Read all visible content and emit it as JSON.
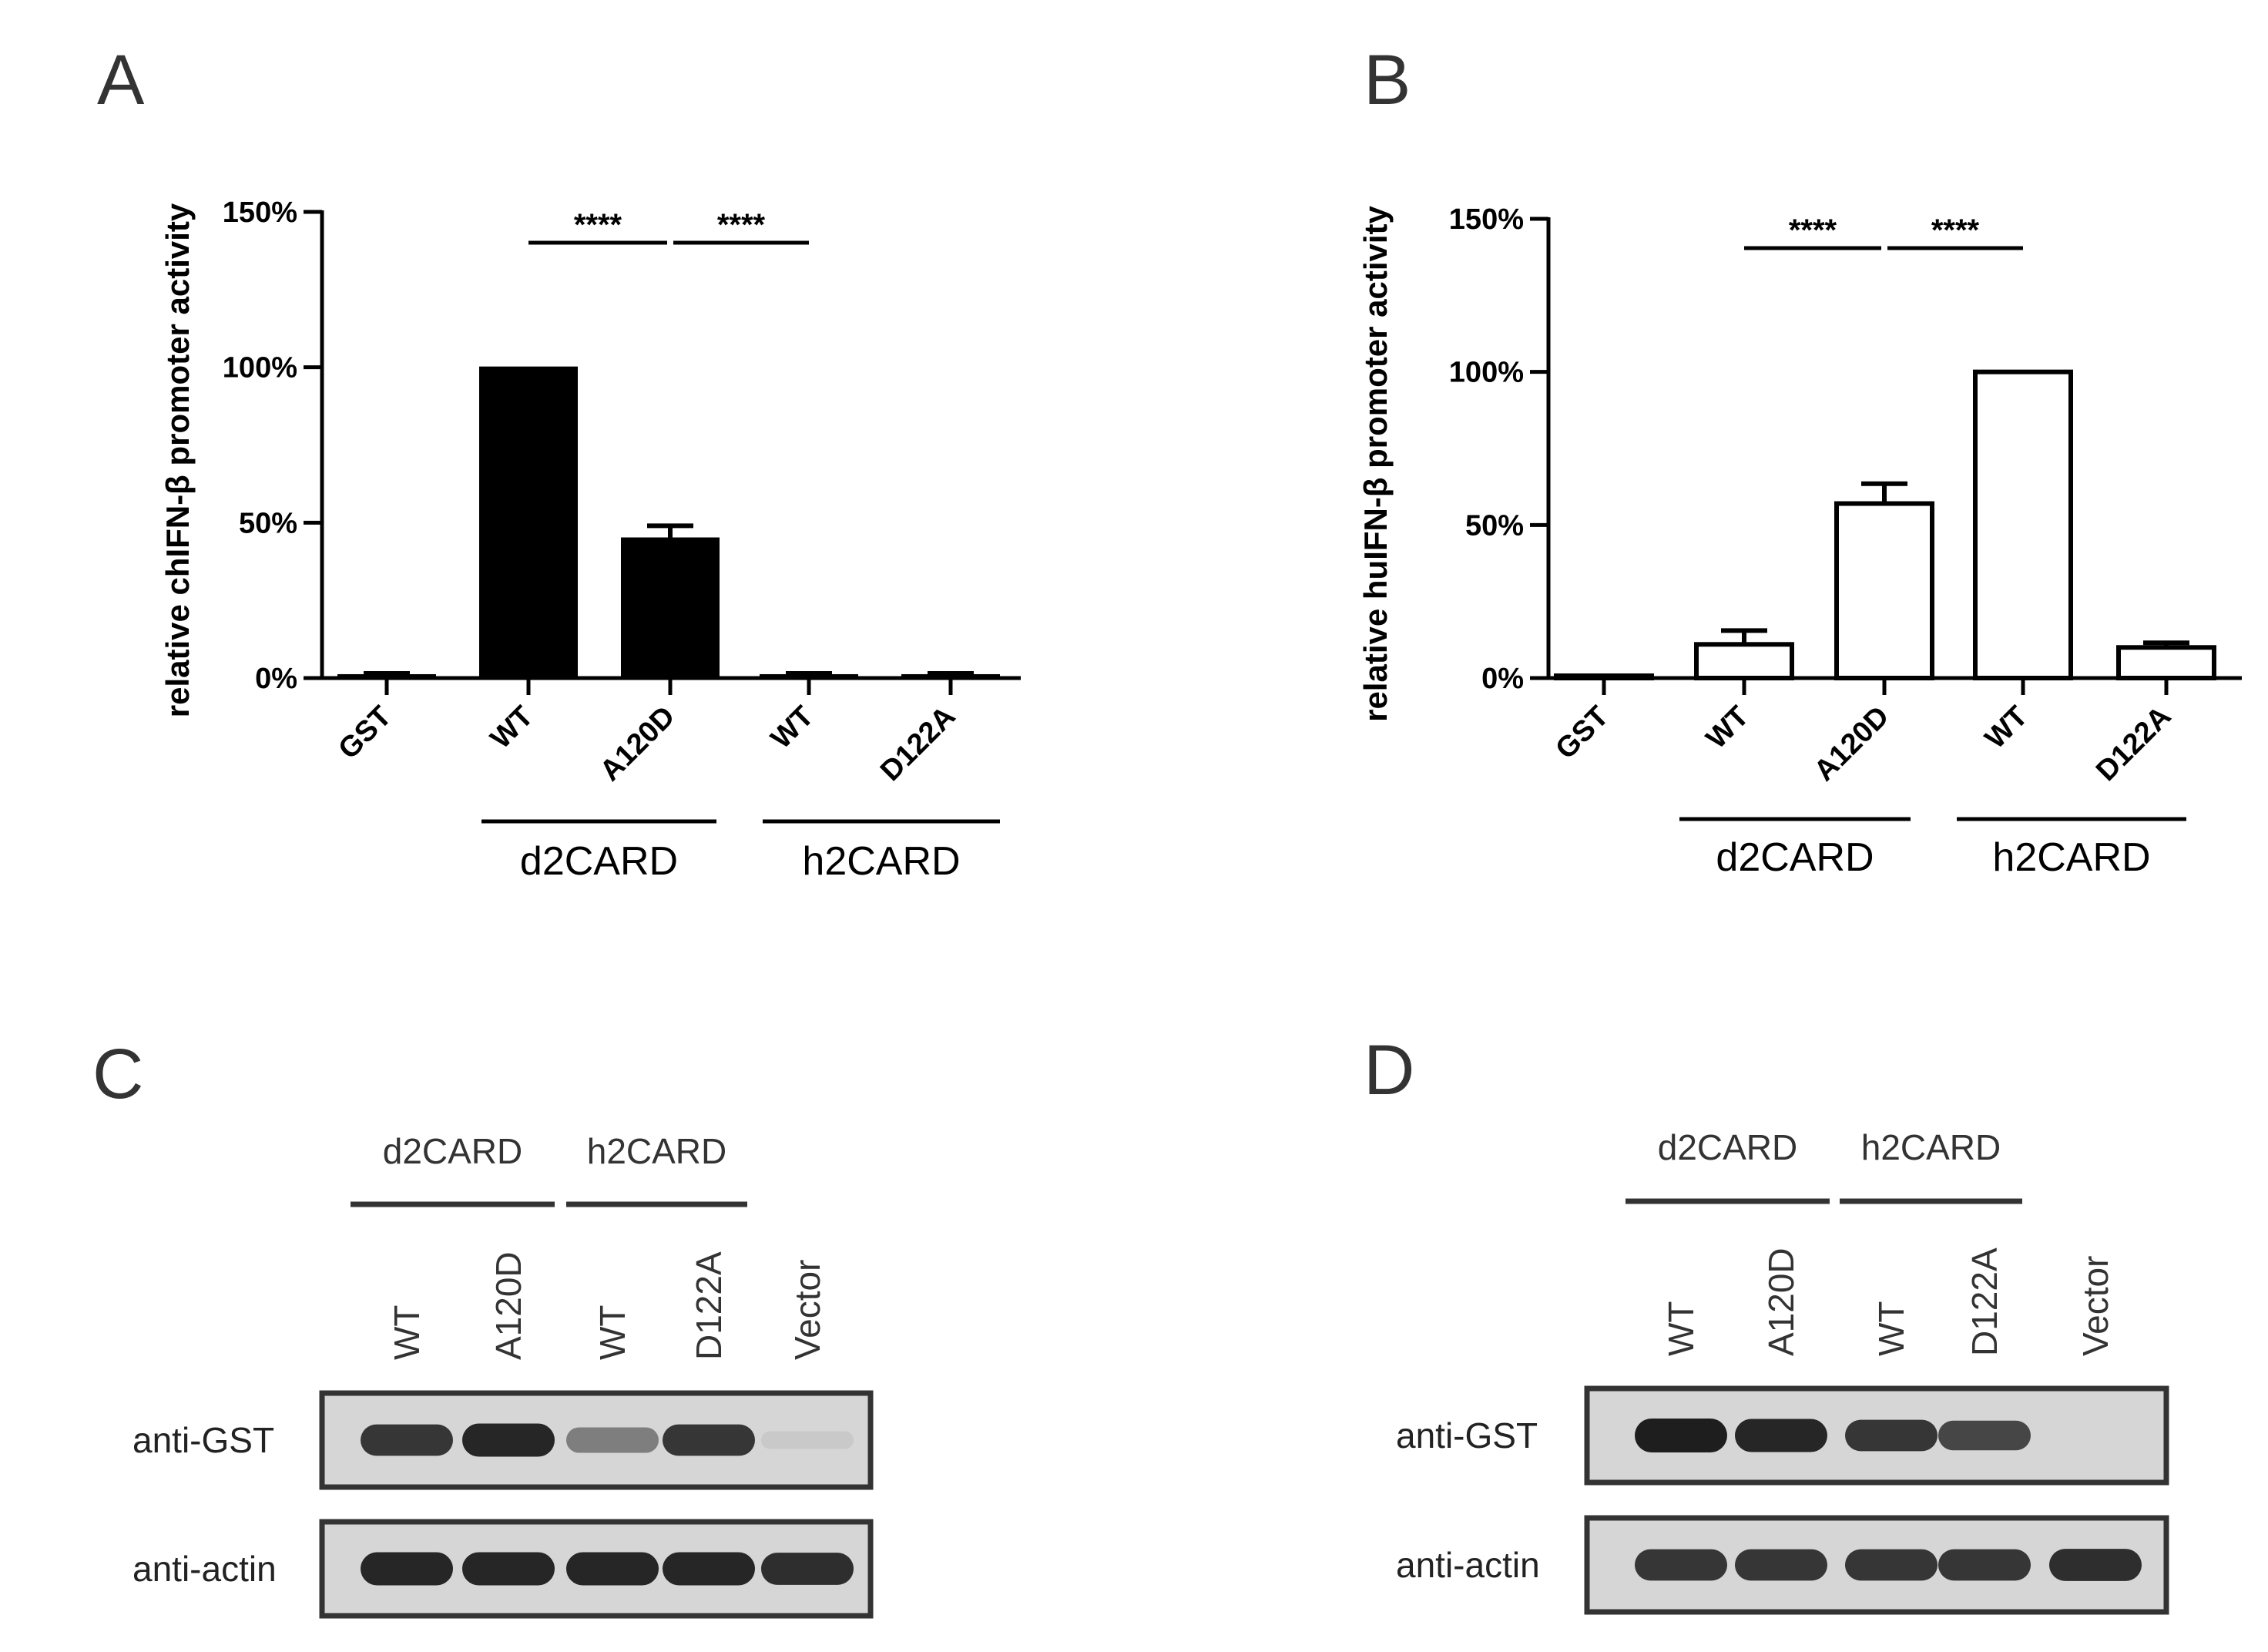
{
  "panels": {
    "A": "A",
    "B": "B",
    "C": "C",
    "D": "D"
  },
  "chart_data": [
    {
      "panel": "A",
      "type": "bar",
      "ylabel": "relative chIFN-β promoter activity",
      "ylim": [
        0,
        150
      ],
      "yticks": [
        "0%",
        "50%",
        "100%",
        "150%"
      ],
      "categories": [
        "GST",
        "WT",
        "A120D",
        "WT",
        "D122A"
      ],
      "values": [
        1,
        100,
        45,
        1,
        1
      ],
      "errors": [
        0.5,
        0,
        4,
        0.5,
        0.5
      ],
      "bar_fill": "#000000",
      "groups": [
        {
          "label": "d2CARD",
          "members": [
            1,
            2
          ]
        },
        {
          "label": "h2CARD",
          "members": [
            3,
            4
          ]
        }
      ],
      "significance": [
        {
          "from": 1,
          "to": 2,
          "label": "****"
        },
        {
          "from": 2,
          "to": 3,
          "label": "****"
        }
      ]
    },
    {
      "panel": "B",
      "type": "bar",
      "ylabel": "relative huIFN-β promoter activity",
      "ylim": [
        0,
        150
      ],
      "yticks": [
        "0%",
        "50%",
        "100%",
        "150%"
      ],
      "categories": [
        "GST",
        "WT",
        "A120D",
        "WT",
        "D122A"
      ],
      "values": [
        0,
        11,
        57,
        100,
        10
      ],
      "errors": [
        0,
        4.5,
        6.5,
        0,
        1.5
      ],
      "bar_fill": "#ffffff",
      "groups": [
        {
          "label": "d2CARD",
          "members": [
            1,
            2
          ]
        },
        {
          "label": "h2CARD",
          "members": [
            3,
            4
          ]
        }
      ],
      "significance": [
        {
          "from": 1,
          "to": 2,
          "label": "****"
        },
        {
          "from": 2,
          "to": 3,
          "label": "****"
        }
      ]
    }
  ],
  "blots": [
    {
      "panel": "C",
      "groups": [
        "d2CARD",
        "h2CARD"
      ],
      "lanes": [
        "WT",
        "A120D",
        "WT",
        "D122A",
        "Vector"
      ],
      "rows": [
        {
          "label": "anti-GST",
          "intensity": [
            0.85,
            0.95,
            0.5,
            0.85,
            0.05
          ]
        },
        {
          "label": "anti-actin",
          "intensity": [
            0.95,
            0.95,
            0.95,
            0.95,
            0.9
          ]
        }
      ]
    },
    {
      "panel": "D",
      "groups": [
        "d2CARD",
        "h2CARD"
      ],
      "lanes": [
        "WT",
        "A120D",
        "WT",
        "D122A",
        "Vector"
      ],
      "rows": [
        {
          "label": "anti-GST",
          "intensity": [
            1.0,
            0.95,
            0.85,
            0.75,
            0.0
          ]
        },
        {
          "label": "anti-actin",
          "intensity": [
            0.85,
            0.85,
            0.85,
            0.85,
            0.9
          ]
        }
      ]
    }
  ]
}
